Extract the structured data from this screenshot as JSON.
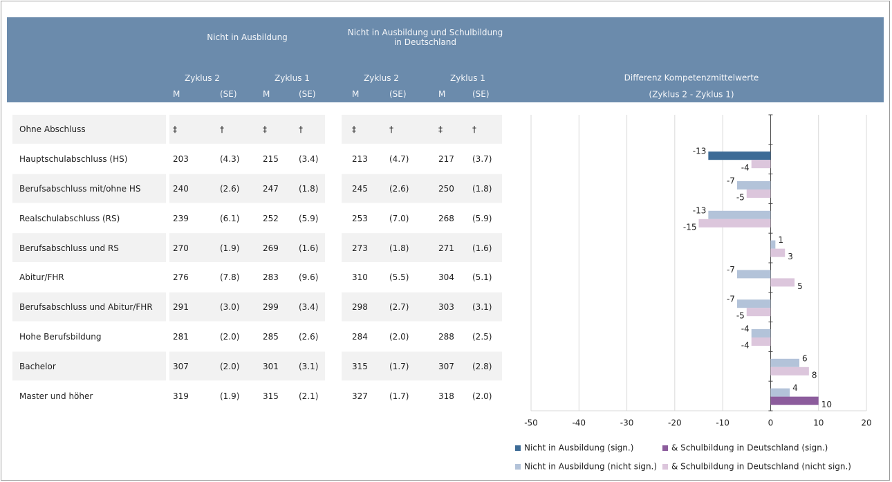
{
  "table": {
    "groups": [
      "Nicht in Ausbildung",
      "Nicht in Ausbildung und Schulbildung in Deutschland"
    ],
    "cycles": [
      "Zyklus 2",
      "Zyklus 1",
      "Zyklus 2",
      "Zyklus 1"
    ],
    "columns": [
      "M",
      "(SE)",
      "M",
      "(SE)",
      "M",
      "(SE)",
      "M",
      "(SE)"
    ],
    "rows": [
      {
        "label": "Ohne Abschluss",
        "cells": [
          "‡",
          "†",
          "‡",
          "†",
          "‡",
          "†",
          "‡",
          "†"
        ]
      },
      {
        "label": "Hauptschulabschluss (HS)",
        "cells": [
          "203",
          "(4.3)",
          "215",
          "(3.4)",
          "213",
          "(4.7)",
          "217",
          "(3.7)"
        ]
      },
      {
        "label": "Berufsabschluss mit/ohne HS",
        "cells": [
          "240",
          "(2.6)",
          "247",
          "(1.8)",
          "245",
          "(2.6)",
          "250",
          "(1.8)"
        ]
      },
      {
        "label": "Realschulabschluss (RS)",
        "cells": [
          "239",
          "(6.1)",
          "252",
          "(5.9)",
          "253",
          "(7.0)",
          "268",
          "(5.9)"
        ]
      },
      {
        "label": "Berufsabschluss und RS",
        "cells": [
          "270",
          "(1.9)",
          "269",
          "(1.6)",
          "273",
          "(1.8)",
          "271",
          "(1.6)"
        ]
      },
      {
        "label": "Abitur/FHR",
        "cells": [
          "276",
          "(7.8)",
          "283",
          "(9.6)",
          "310",
          "(5.5)",
          "304",
          "(5.1)"
        ]
      },
      {
        "label": "Berufsabschluss und Abitur/FHR",
        "cells": [
          "291",
          "(3.0)",
          "299",
          "(3.4)",
          "298",
          "(2.7)",
          "303",
          "(3.1)"
        ]
      },
      {
        "label": "Hohe Berufsbildung",
        "cells": [
          "281",
          "(2.0)",
          "285",
          "(2.6)",
          "284",
          "(2.0)",
          "288",
          "(2.5)"
        ]
      },
      {
        "label": "Bachelor",
        "cells": [
          "307",
          "(2.0)",
          "301",
          "(3.1)",
          "315",
          "(1.7)",
          "307",
          "(2.8)"
        ]
      },
      {
        "label": "Master und höher",
        "cells": [
          "319",
          "(1.9)",
          "315",
          "(2.1)",
          "327",
          "(1.7)",
          "318",
          "(2.0)"
        ]
      }
    ]
  },
  "chart_data": {
    "type": "bar",
    "orientation": "horizontal",
    "title": "Differenz Kompetenzmittelwerte",
    "subtitle": "(Zyklus 2 - Zyklus 1)",
    "xlim": [
      -50,
      20
    ],
    "xticks": [
      -50,
      -40,
      -30,
      -20,
      -10,
      0,
      10,
      20
    ],
    "grid": true,
    "series": [
      {
        "values": [
          null,
          -13,
          -7,
          -13,
          1,
          -7,
          -7,
          -4,
          6,
          4
        ],
        "colors": [
          null,
          "#3d6b96",
          "#b3c3d9",
          "#b3c3d9",
          "#b3c3d9",
          "#b3c3d9",
          "#b3c3d9",
          "#b3c3d9",
          "#b3c3d9",
          "#b3c3d9"
        ]
      },
      {
        "values": [
          null,
          -4,
          -5,
          -15,
          3,
          5,
          -5,
          -4,
          8,
          10
        ],
        "colors": [
          null,
          "#dcc6dc",
          "#dcc6dc",
          "#dcc6dc",
          "#dcc6dc",
          "#dcc6dc",
          "#dcc6dc",
          "#dcc6dc",
          "#dcc6dc",
          "#8c5c9c"
        ]
      }
    ],
    "legend": [
      {
        "name": "Nicht in Ausbildung (sign.)",
        "color": "#3d6b96"
      },
      {
        "name": "& Schulbildung in Deutschland (sign.)",
        "color": "#8c5c9c"
      },
      {
        "name": "Nicht in Ausbildung (nicht sign.)",
        "color": "#b3c3d9"
      },
      {
        "name": "& Schulbildung in Deutschland (nicht sign.)",
        "color": "#dcc6dc"
      }
    ]
  }
}
